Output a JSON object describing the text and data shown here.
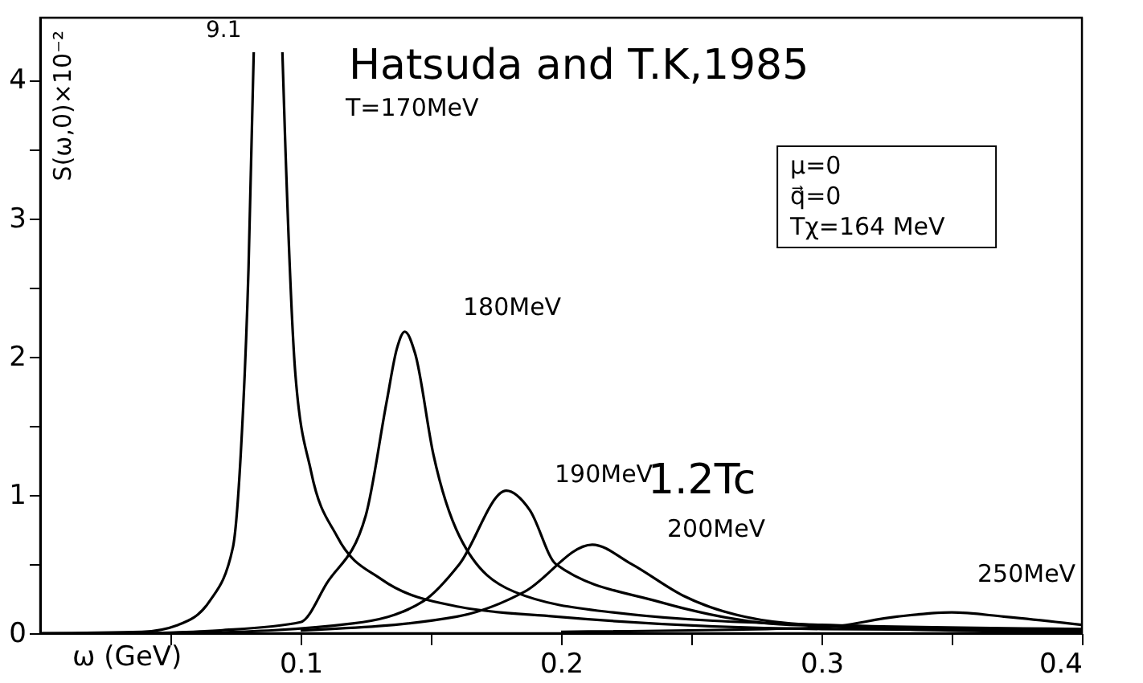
{
  "chart_data": {
    "type": "line",
    "xlabel": "ω (GeV)",
    "ylabel": "S(ω,0)×10⁻²",
    "xlim": [
      0,
      0.4
    ],
    "ylim": [
      0,
      4.45
    ],
    "xticks": [
      {
        "value": 0.05,
        "label": null
      },
      0.1,
      {
        "value": 0.15,
        "label": null
      },
      0.2,
      {
        "value": 0.25,
        "label": null
      },
      0.3,
      {
        "value": 0.35,
        "label": null
      },
      0.4
    ],
    "yticks": [
      0,
      {
        "value": 0.5,
        "label": null
      },
      1,
      {
        "value": 1.5,
        "label": null
      },
      2,
      {
        "value": 2.5,
        "label": null
      },
      3,
      {
        "value": 3.5,
        "label": null
      },
      4
    ],
    "grid": false,
    "marker": "none",
    "line_style": "solid",
    "series": [
      {
        "color": "#000000",
        "x": [
          0.0,
          0.039,
          0.053,
          0.065,
          0.074,
          0.077,
          0.08,
          0.082,
          null,
          0.093,
          0.094,
          0.098,
          0.104,
          0.114,
          0.131,
          0.161,
          0.198,
          0.3,
          0.4
        ],
        "values": [
          0,
          0.01,
          0.06,
          0.23,
          0.62,
          1.29,
          2.64,
          4.2,
          null,
          4.2,
          3.6,
          1.87,
          1.17,
          0.7,
          0.39,
          0.19,
          0.12,
          0.03,
          0.02
        ]
      },
      {
        "color": "#000000",
        "x": [
          0.04,
          0.069,
          0.1,
          0.11,
          0.125,
          0.133,
          0.137,
          0.14,
          0.144,
          0.151,
          0.161,
          0.182,
          0.22,
          0.3,
          0.4
        ],
        "values": [
          0,
          0.02,
          0.08,
          0.36,
          0.85,
          1.67,
          2.06,
          2.18,
          2.02,
          1.29,
          0.7,
          0.3,
          0.15,
          0.06,
          0.03
        ]
      },
      {
        "color": "#000000",
        "x": [
          0.06,
          0.12,
          0.147,
          0.161,
          0.179,
          0.188,
          0.198,
          0.237,
          0.288,
          0.4
        ],
        "values": [
          0,
          0.07,
          0.23,
          0.5,
          1.03,
          0.89,
          0.5,
          0.23,
          0.06,
          0.02
        ]
      },
      {
        "color": "#000000",
        "x": [
          0.1,
          0.16,
          0.186,
          0.212,
          0.227,
          0.247,
          0.288,
          0.35,
          0.4
        ],
        "values": [
          0.02,
          0.12,
          0.3,
          0.64,
          0.5,
          0.27,
          0.07,
          0.02,
          0.01
        ]
      },
      {
        "color": "#000000",
        "x": [
          0.2,
          0.3,
          0.329,
          0.35,
          0.37,
          0.4
        ],
        "values": [
          0.01,
          0.04,
          0.12,
          0.15,
          0.12,
          0.06
        ]
      }
    ],
    "annotations": [
      "Hatsuda and T.K,1985",
      "μ=0",
      "q⃗=0",
      "Tχ=164 MeV",
      "9.1",
      "T=170MeV",
      "180MeV",
      "190MeV",
      "1.2Tc",
      "200MeV",
      "250MeV"
    ]
  }
}
